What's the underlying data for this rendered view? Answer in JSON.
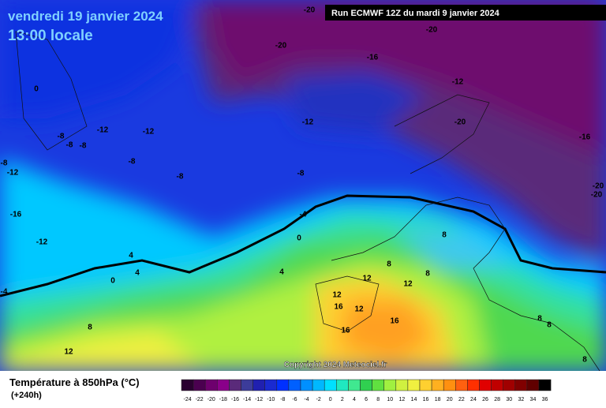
{
  "header": {
    "date": "vendredi 19 janvier 2024",
    "time": "13:00 locale",
    "run": "Run ECMWF 12Z du mardi 9 janvier 2024"
  },
  "copyright": "Copyright 2024 Meteociel.fr",
  "legend": {
    "title": "Température à 850hPa (°C)",
    "lead": "(+240h)",
    "scale": [
      {
        "value": -24,
        "color": "#2a0030"
      },
      {
        "value": -22,
        "color": "#4b0050"
      },
      {
        "value": -20,
        "color": "#6e006e"
      },
      {
        "value": -18,
        "color": "#8a008a"
      },
      {
        "value": -16,
        "color": "#5a2a7a"
      },
      {
        "value": -14,
        "color": "#3c3c9a"
      },
      {
        "value": -12,
        "color": "#2020b0"
      },
      {
        "value": -10,
        "color": "#1a2ad0"
      },
      {
        "value": -8,
        "color": "#0030ff"
      },
      {
        "value": -6,
        "color": "#0060ff"
      },
      {
        "value": -4,
        "color": "#0090ff"
      },
      {
        "value": -2,
        "color": "#00b8ff"
      },
      {
        "value": 0,
        "color": "#00e0ff"
      },
      {
        "value": 2,
        "color": "#20e8c0"
      },
      {
        "value": 4,
        "color": "#40e890"
      },
      {
        "value": 6,
        "color": "#30d050"
      },
      {
        "value": 8,
        "color": "#60e040"
      },
      {
        "value": 10,
        "color": "#a0f040"
      },
      {
        "value": 12,
        "color": "#d0f040"
      },
      {
        "value": 14,
        "color": "#f0f040"
      },
      {
        "value": 16,
        "color": "#ffd030"
      },
      {
        "value": 18,
        "color": "#ffb020"
      },
      {
        "value": 20,
        "color": "#ff9010"
      },
      {
        "value": 22,
        "color": "#ff6010"
      },
      {
        "value": 24,
        "color": "#ff3000"
      },
      {
        "value": 26,
        "color": "#e00000"
      },
      {
        "value": 28,
        "color": "#c00000"
      },
      {
        "value": 30,
        "color": "#a00000"
      },
      {
        "value": 32,
        "color": "#800000"
      },
      {
        "value": 34,
        "color": "#600000"
      },
      {
        "value": 36,
        "color": "#000000"
      }
    ]
  },
  "contour_labels": [
    -20,
    -20,
    -20,
    -16,
    0,
    -12,
    -12,
    -12,
    -12,
    -20,
    -16,
    -8,
    -8,
    -8,
    -8,
    -8,
    -12,
    -8,
    -8,
    -20,
    -20,
    -16,
    -4,
    -12,
    0,
    8,
    4,
    8,
    4,
    0,
    4,
    12,
    8,
    12,
    -4,
    12,
    16,
    12,
    16,
    8,
    8,
    8,
    16,
    12,
    8
  ]
}
